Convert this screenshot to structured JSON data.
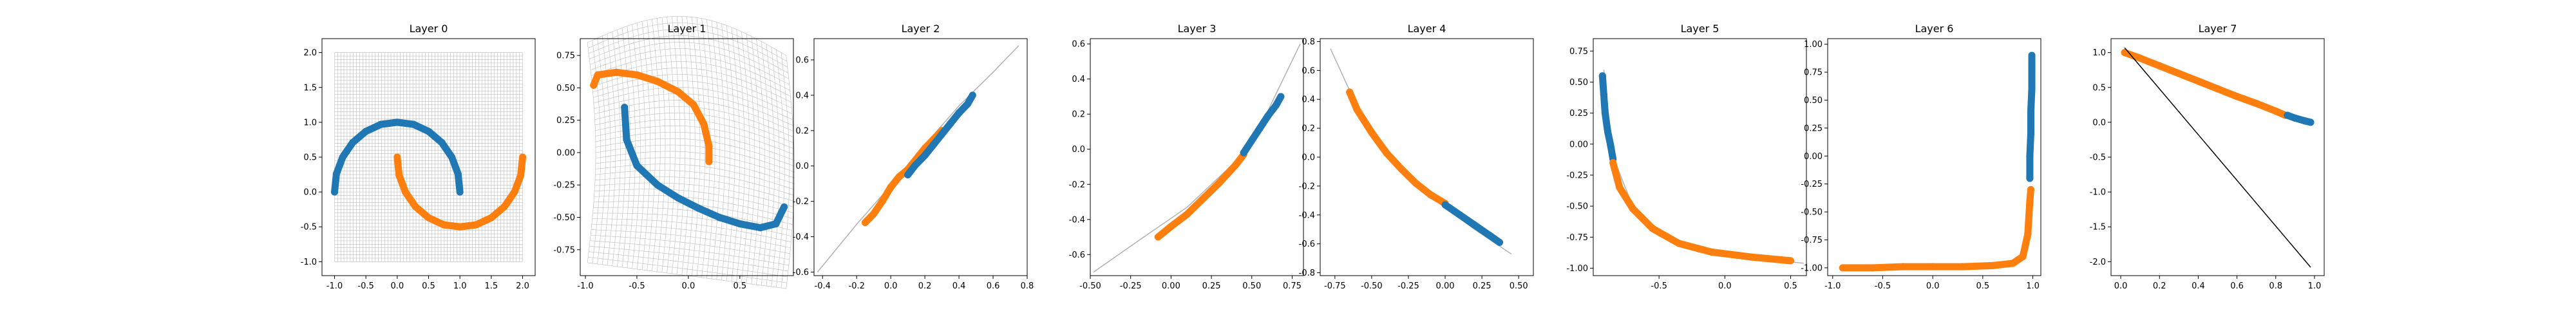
{
  "colors": {
    "blue": "#1f77b4",
    "orange": "#ff7f0e",
    "grid": "#bbbbbb",
    "line": "#000000"
  },
  "chart_data": [
    {
      "type": "scatter",
      "title": "Layer 0",
      "grid": true,
      "xlim": [
        -1.2,
        2.2
      ],
      "ylim": [
        -1.2,
        2.2
      ],
      "xticks": [
        "-1.0",
        "-0.5",
        "0.0",
        "0.5",
        "1.0",
        "1.5",
        "2.0"
      ],
      "yticks": [
        "-1.0",
        "-0.5",
        "0.0",
        "0.5",
        "1.0",
        "1.5",
        "2.0"
      ],
      "series": [
        {
          "color": "blue",
          "points": [
            [
              -1.0,
              0.0
            ],
            [
              -0.97,
              0.26
            ],
            [
              -0.87,
              0.5
            ],
            [
              -0.71,
              0.71
            ],
            [
              -0.5,
              0.87
            ],
            [
              -0.26,
              0.97
            ],
            [
              0.0,
              1.0
            ],
            [
              0.26,
              0.97
            ],
            [
              0.5,
              0.87
            ],
            [
              0.71,
              0.71
            ],
            [
              0.87,
              0.5
            ],
            [
              0.97,
              0.26
            ],
            [
              1.0,
              0.0
            ]
          ]
        },
        {
          "color": "orange",
          "points": [
            [
              0.0,
              0.5
            ],
            [
              0.03,
              0.24
            ],
            [
              0.13,
              0.0
            ],
            [
              0.29,
              -0.21
            ],
            [
              0.5,
              -0.37
            ],
            [
              0.74,
              -0.47
            ],
            [
              1.0,
              -0.5
            ],
            [
              1.26,
              -0.47
            ],
            [
              1.5,
              -0.37
            ],
            [
              1.71,
              -0.21
            ],
            [
              1.87,
              0.0
            ],
            [
              1.97,
              0.24
            ],
            [
              2.0,
              0.5
            ]
          ]
        }
      ]
    },
    {
      "type": "scatter",
      "title": "Layer 1",
      "grid": true,
      "xlim": [
        -1.05,
        1.02
      ],
      "ylim": [
        -0.95,
        0.88
      ],
      "xticks": [
        "-1.0",
        "-0.5",
        "0.0",
        "0.5"
      ],
      "yticks": [
        "-0.75",
        "-0.50",
        "-0.25",
        "0.00",
        "0.25",
        "0.50",
        "0.75"
      ],
      "series": [
        {
          "color": "blue",
          "points": [
            [
              -0.62,
              0.35
            ],
            [
              -0.6,
              0.1
            ],
            [
              -0.5,
              -0.1
            ],
            [
              -0.3,
              -0.25
            ],
            [
              -0.1,
              -0.35
            ],
            [
              0.1,
              -0.43
            ],
            [
              0.3,
              -0.5
            ],
            [
              0.5,
              -0.55
            ],
            [
              0.7,
              -0.58
            ],
            [
              0.85,
              -0.55
            ],
            [
              0.93,
              -0.42
            ]
          ]
        },
        {
          "color": "orange",
          "points": [
            [
              -0.92,
              0.52
            ],
            [
              -0.88,
              0.6
            ],
            [
              -0.7,
              0.62
            ],
            [
              -0.5,
              0.6
            ],
            [
              -0.3,
              0.55
            ],
            [
              -0.1,
              0.47
            ],
            [
              0.05,
              0.37
            ],
            [
              0.15,
              0.22
            ],
            [
              0.2,
              0.05
            ],
            [
              0.2,
              -0.07
            ]
          ]
        }
      ]
    },
    {
      "type": "scatter",
      "title": "Layer 2",
      "grid": false,
      "xlim": [
        -0.45,
        0.8
      ],
      "ylim": [
        -0.62,
        0.72
      ],
      "xticks": [
        "-0.4",
        "-0.2",
        "0.0",
        "0.2",
        "0.4",
        "0.6",
        "0.8"
      ],
      "yticks": [
        "-0.6",
        "-0.4",
        "-0.2",
        "0.0",
        "0.2",
        "0.4",
        "0.6"
      ],
      "curve": [
        [
          -0.43,
          -0.6
        ],
        [
          -0.2,
          -0.33
        ],
        [
          0.0,
          -0.11
        ],
        [
          0.2,
          0.12
        ],
        [
          0.4,
          0.34
        ],
        [
          0.6,
          0.53
        ],
        [
          0.75,
          0.68
        ]
      ],
      "series": [
        {
          "color": "orange",
          "points": [
            [
              -0.15,
              -0.32
            ],
            [
              -0.1,
              -0.27
            ],
            [
              -0.05,
              -0.2
            ],
            [
              0.0,
              -0.12
            ],
            [
              0.05,
              -0.06
            ],
            [
              0.1,
              -0.02
            ],
            [
              0.15,
              0.04
            ],
            [
              0.2,
              0.1
            ],
            [
              0.25,
              0.15
            ],
            [
              0.3,
              0.2
            ]
          ]
        },
        {
          "color": "blue",
          "points": [
            [
              0.1,
              -0.05
            ],
            [
              0.14,
              0.0
            ],
            [
              0.2,
              0.06
            ],
            [
              0.25,
              0.12
            ],
            [
              0.3,
              0.18
            ],
            [
              0.35,
              0.24
            ],
            [
              0.4,
              0.3
            ],
            [
              0.45,
              0.35
            ],
            [
              0.48,
              0.4
            ]
          ]
        }
      ]
    },
    {
      "type": "scatter",
      "title": "Layer 3",
      "grid": false,
      "xlim": [
        -0.5,
        0.82
      ],
      "ylim": [
        -0.72,
        0.63
      ],
      "xticks": [
        "-0.50",
        "-0.25",
        "0.00",
        "0.25",
        "0.50",
        "0.75"
      ],
      "yticks": [
        "-0.6",
        "-0.4",
        "-0.2",
        "0.0",
        "0.2",
        "0.4",
        "0.6"
      ],
      "curve": [
        [
          -0.48,
          -0.7
        ],
        [
          -0.2,
          -0.52
        ],
        [
          0.1,
          -0.33
        ],
        [
          0.4,
          -0.07
        ],
        [
          0.6,
          0.22
        ],
        [
          0.8,
          0.6
        ]
      ],
      "series": [
        {
          "color": "orange",
          "points": [
            [
              -0.08,
              -0.5
            ],
            [
              0.0,
              -0.44
            ],
            [
              0.1,
              -0.37
            ],
            [
              0.2,
              -0.28
            ],
            [
              0.3,
              -0.19
            ],
            [
              0.4,
              -0.09
            ],
            [
              0.45,
              -0.03
            ]
          ]
        },
        {
          "color": "blue",
          "points": [
            [
              0.45,
              -0.02
            ],
            [
              0.5,
              0.05
            ],
            [
              0.55,
              0.12
            ],
            [
              0.6,
              0.19
            ],
            [
              0.65,
              0.25
            ],
            [
              0.68,
              0.3
            ]
          ]
        }
      ]
    },
    {
      "type": "scatter",
      "title": "Layer 4",
      "grid": false,
      "xlim": [
        -0.85,
        0.6
      ],
      "ylim": [
        -0.82,
        0.82
      ],
      "xticks": [
        "-0.75",
        "-0.50",
        "-0.25",
        "0.00",
        "0.25",
        "0.50"
      ],
      "yticks": [
        "-0.8",
        "-0.6",
        "-0.4",
        "-0.2",
        "0.0",
        "0.2",
        "0.4",
        "0.6",
        "0.8"
      ],
      "curve": [
        [
          -0.78,
          0.75
        ],
        [
          -0.6,
          0.35
        ],
        [
          -0.4,
          0.0
        ],
        [
          -0.2,
          -0.2
        ],
        [
          0.0,
          -0.35
        ],
        [
          0.2,
          -0.5
        ],
        [
          0.45,
          -0.67
        ]
      ],
      "series": [
        {
          "color": "orange",
          "points": [
            [
              -0.65,
              0.45
            ],
            [
              -0.6,
              0.33
            ],
            [
              -0.5,
              0.17
            ],
            [
              -0.4,
              0.03
            ],
            [
              -0.3,
              -0.08
            ],
            [
              -0.2,
              -0.18
            ],
            [
              -0.1,
              -0.26
            ],
            [
              0.0,
              -0.32
            ]
          ]
        },
        {
          "color": "blue",
          "points": [
            [
              0.0,
              -0.33
            ],
            [
              0.1,
              -0.4
            ],
            [
              0.2,
              -0.47
            ],
            [
              0.3,
              -0.54
            ],
            [
              0.37,
              -0.59
            ]
          ]
        }
      ]
    },
    {
      "type": "scatter",
      "title": "Layer 5",
      "grid": false,
      "xlim": [
        -1.0,
        0.62
      ],
      "ylim": [
        -1.06,
        0.85
      ],
      "xticks": [
        "-0.5",
        "0.0",
        "0.5"
      ],
      "yticks": [
        "-1.00",
        "-0.75",
        "-0.50",
        "-0.25",
        "0.00",
        "0.25",
        "0.50",
        "0.75"
      ],
      "curve": [
        [
          -0.92,
          0.6
        ],
        [
          -0.85,
          -0.1
        ],
        [
          -0.7,
          -0.5
        ],
        [
          -0.5,
          -0.74
        ],
        [
          -0.2,
          -0.87
        ],
        [
          0.2,
          -0.92
        ],
        [
          0.6,
          -0.96
        ]
      ],
      "series": [
        {
          "color": "blue",
          "points": [
            [
              -0.93,
              0.55
            ],
            [
              -0.92,
              0.4
            ],
            [
              -0.91,
              0.25
            ],
            [
              -0.89,
              0.1
            ],
            [
              -0.87,
              0.0
            ],
            [
              -0.85,
              -0.12
            ]
          ]
        },
        {
          "color": "orange",
          "points": [
            [
              -0.85,
              -0.15
            ],
            [
              -0.8,
              -0.35
            ],
            [
              -0.7,
              -0.52
            ],
            [
              -0.55,
              -0.68
            ],
            [
              -0.35,
              -0.8
            ],
            [
              -0.1,
              -0.87
            ],
            [
              0.2,
              -0.91
            ],
            [
              0.5,
              -0.94
            ]
          ]
        }
      ]
    },
    {
      "type": "scatter",
      "title": "Layer 6",
      "grid": false,
      "xlim": [
        -1.05,
        1.08
      ],
      "ylim": [
        -1.07,
        1.05
      ],
      "xticks": [
        "-1.0",
        "-0.5",
        "0.0",
        "0.5",
        "1.0"
      ],
      "yticks": [
        "-1.00",
        "-0.75",
        "-0.50",
        "-0.25",
        "0.00",
        "0.25",
        "0.50",
        "0.75",
        "1.00"
      ],
      "series": [
        {
          "color": "orange",
          "points": [
            [
              -0.9,
              -1.0
            ],
            [
              -0.6,
              -1.0
            ],
            [
              -0.3,
              -0.99
            ],
            [
              0.0,
              -0.99
            ],
            [
              0.3,
              -0.99
            ],
            [
              0.6,
              -0.98
            ],
            [
              0.8,
              -0.96
            ],
            [
              0.9,
              -0.9
            ],
            [
              0.95,
              -0.7
            ],
            [
              0.97,
              -0.4
            ],
            [
              0.98,
              -0.3
            ]
          ]
        },
        {
          "color": "blue",
          "points": [
            [
              0.97,
              -0.2
            ],
            [
              0.97,
              0.0
            ],
            [
              0.98,
              0.2
            ],
            [
              0.98,
              0.4
            ],
            [
              0.99,
              0.6
            ],
            [
              0.99,
              0.8
            ],
            [
              0.99,
              0.9
            ]
          ]
        }
      ]
    },
    {
      "type": "scatter",
      "title": "Layer 7",
      "grid": false,
      "xlim": [
        -0.05,
        1.05
      ],
      "ylim": [
        -2.2,
        1.2
      ],
      "xticks": [
        "0.0",
        "0.2",
        "0.4",
        "0.6",
        "0.8",
        "1.0"
      ],
      "yticks": [
        "-2.0",
        "-1.5",
        "-1.0",
        "-0.5",
        "0.0",
        "0.5",
        "1.0"
      ],
      "line": [
        [
          0.02,
          1.07
        ],
        [
          0.98,
          -2.08
        ]
      ],
      "series": [
        {
          "color": "orange",
          "points": [
            [
              0.02,
              1.0
            ],
            [
              0.1,
              0.92
            ],
            [
              0.2,
              0.81
            ],
            [
              0.3,
              0.7
            ],
            [
              0.4,
              0.59
            ],
            [
              0.5,
              0.48
            ],
            [
              0.6,
              0.37
            ],
            [
              0.7,
              0.27
            ],
            [
              0.8,
              0.16
            ],
            [
              0.85,
              0.1
            ]
          ]
        },
        {
          "color": "blue",
          "points": [
            [
              0.86,
              0.1
            ],
            [
              0.9,
              0.06
            ],
            [
              0.95,
              0.02
            ],
            [
              0.98,
              0.0
            ]
          ]
        }
      ]
    }
  ]
}
